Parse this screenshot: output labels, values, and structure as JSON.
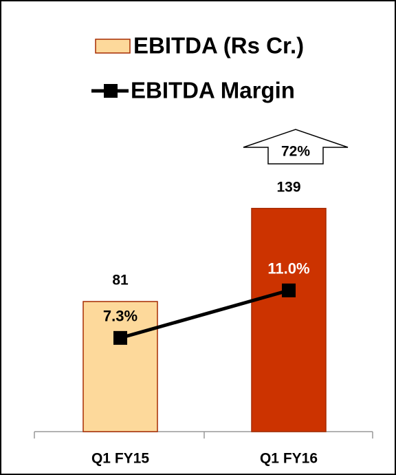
{
  "chart_data": {
    "type": "bar",
    "categories": [
      "Q1 FY15",
      "Q1 FY16"
    ],
    "series": [
      {
        "name": "EBITDA (Rs Cr.)",
        "type": "bar",
        "colors": [
          "#FDD99B",
          "#CC3300"
        ],
        "values": [
          81,
          139
        ]
      },
      {
        "name": "EBITDA Margin",
        "type": "line",
        "axis": "y2",
        "color": "#000000",
        "values": [
          7.3,
          11.0
        ],
        "value_labels": [
          "7.3%",
          "11.0%"
        ],
        "label_colors": [
          "#000000",
          "#FFFFFF"
        ]
      }
    ],
    "annotation": "72%"
  }
}
